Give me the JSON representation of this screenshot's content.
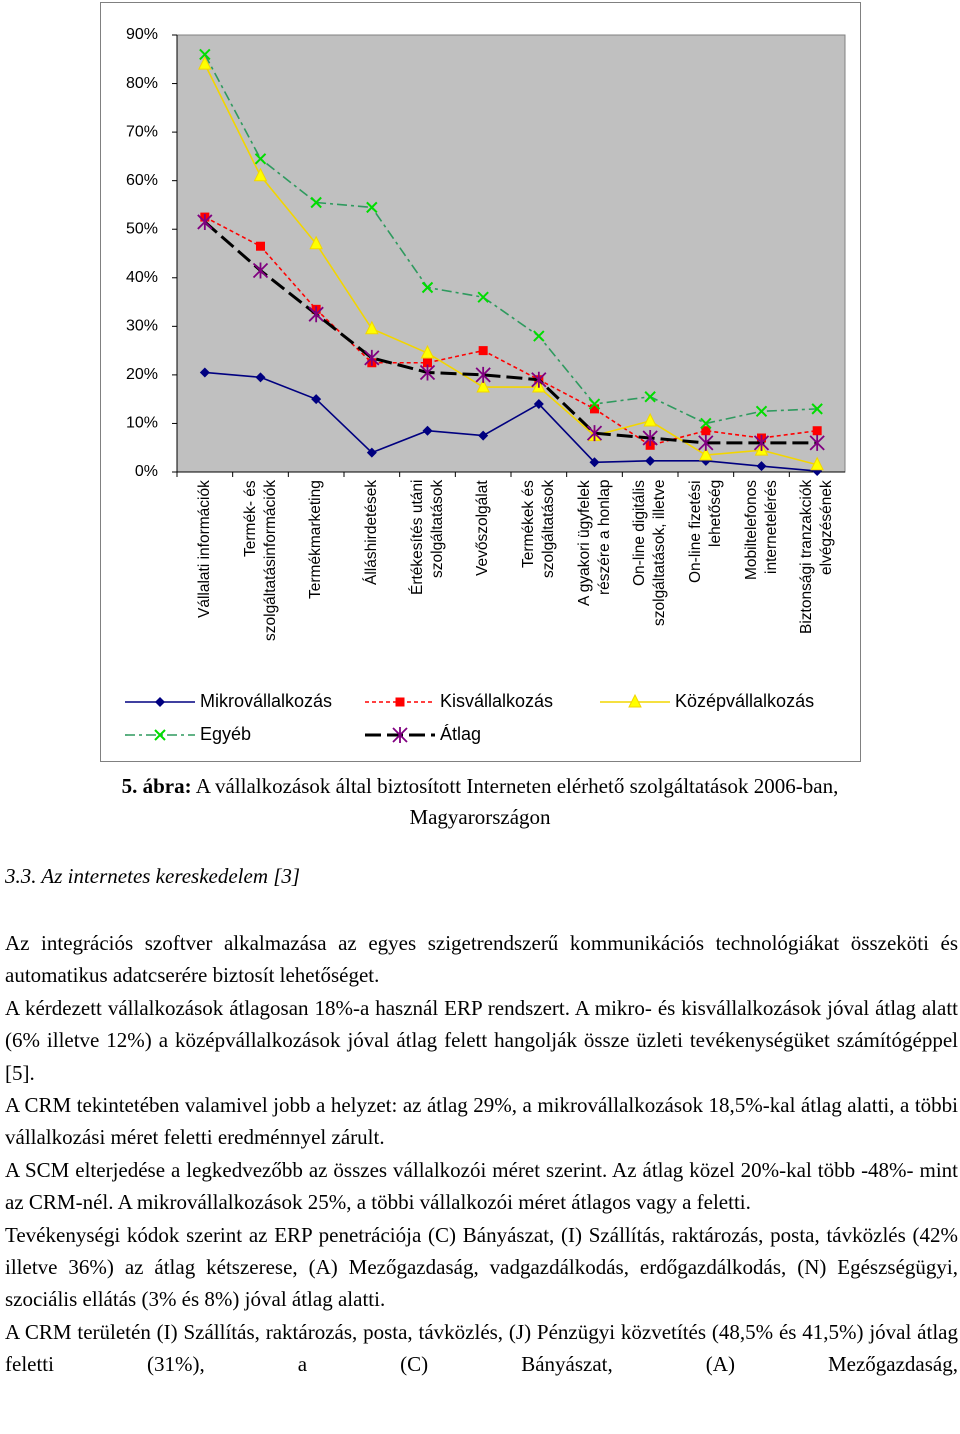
{
  "chart_data": {
    "type": "line",
    "categories": [
      "Vállalati információk",
      "Termék- és\nszolgáltatásinformációk",
      "Termékmarketing",
      "Álláshirdetések",
      "Értékesítés utáni\nszolgáltatások",
      "Vevőszolgálat",
      "Termékek és\nszolgáltatások",
      "A gyakori ügyfelek\nrészére a honlap",
      "On-line digitális\nszolgáltatások, illetve",
      "On-line fizetési\nlehetőség",
      "Mobiltelefonos\ninternetelérés",
      "Biztonsági tranzakciók\nelvégzésének"
    ],
    "series": [
      {
        "name": "Mikrovállalkozás",
        "color": "#000080",
        "marker": "diamond",
        "line_style": "solid",
        "values": [
          20.5,
          19.5,
          15,
          4,
          8.5,
          7.5,
          14,
          2,
          2.3,
          2.3,
          1.2,
          0.2
        ]
      },
      {
        "name": "Kisvállalkozás",
        "color": "#ff0000",
        "marker": "square",
        "line_style": "dotted",
        "values": [
          52.5,
          46.5,
          33.5,
          22.5,
          22.5,
          25,
          19,
          13,
          5.5,
          8.5,
          7,
          8.5
        ]
      },
      {
        "name": "Középvállalkozás",
        "color": "#f2d500",
        "marker": "triangle",
        "line_style": "solid",
        "values": [
          84,
          61,
          47,
          29.5,
          24.5,
          17.5,
          17.5,
          7.5,
          10.5,
          3.5,
          4.5,
          1.5
        ]
      },
      {
        "name": "Egyéb",
        "color": "#2e9a5e",
        "marker": "x",
        "line_style": "dashdot",
        "values": [
          86,
          64.5,
          55.5,
          54.5,
          38,
          36,
          28,
          14,
          15.5,
          10,
          12.5,
          13
        ]
      },
      {
        "name": "Átlag",
        "color": "#000000",
        "marker": "asterisk",
        "line_style": "dashed",
        "values": [
          51.5,
          41.5,
          32.5,
          23.5,
          20.5,
          20,
          19,
          8,
          7,
          6,
          6,
          6
        ]
      }
    ],
    "ylim": [
      0,
      90
    ],
    "yticks": [
      {
        "value": 0,
        "label": "0%"
      },
      {
        "value": 10,
        "label": "10%"
      },
      {
        "value": 20,
        "label": "20%"
      },
      {
        "value": 30,
        "label": "30%"
      },
      {
        "value": 40,
        "label": "40%"
      },
      {
        "value": 50,
        "label": "50%"
      },
      {
        "value": 60,
        "label": "60%"
      },
      {
        "value": 70,
        "label": "70%"
      },
      {
        "value": 80,
        "label": "80%"
      },
      {
        "value": 90,
        "label": "90%"
      }
    ],
    "grid": false,
    "plot_background": "#c0c0c0",
    "legend": "bottom"
  },
  "caption": {
    "label": "5. ábra:",
    "text": "A vállalkozások által biztosított Interneten elérhető szolgáltatások 2006-ban, Magyarországon"
  },
  "heading": "3.3. Az internetes kereskedelem [3]",
  "paragraphs": [
    "Az integrációs szoftver alkalmazása az egyes szigetrendszerű kommunikációs technológiákat összeköti és automatikus adatcserére biztosít lehetőséget.",
    "A kérdezett vállalkozások átlagosan 18%-a használ ERP rendszert. A mikro- és kisvállalkozások jóval átlag alatt (6% illetve 12%) a középvállalkozások jóval átlag felett hangolják össze üzleti tevékenységüket számítógéppel [5].",
    "A CRM tekintetében valamivel jobb a helyzet: az átlag 29%, a mikrovállalkozások 18,5%-kal átlag alatti, a többi vállalkozási méret feletti eredménnyel zárult.",
    "A SCM elterjedése a legkedvezőbb az összes vállalkozói méret szerint. Az átlag közel 20%-kal több -48%- mint az CRM-nél. A mikrovállalkozások 25%, a többi vállalkozói méret átlagos vagy a feletti.",
    "Tevékenységi kódok szerint az ERP penetrációja (C) Bányászat, (I) Szállítás, raktározás, posta, távközlés (42% illetve 36%) az átlag kétszerese, (A) Mezőgazdaság, vadgazdálkodás, erdőgazdálkodás, (N) Egészségügyi, szociális ellátás (3% és 8%) jóval átlag alatti.",
    "A CRM területén (I) Szállítás, raktározás, posta, távközlés, (J) Pénzügyi közvetítés (48,5% és 41,5%) jóval átlag feletti (31%), a (C) Bányászat, (A) Mezőgazdaság,"
  ]
}
